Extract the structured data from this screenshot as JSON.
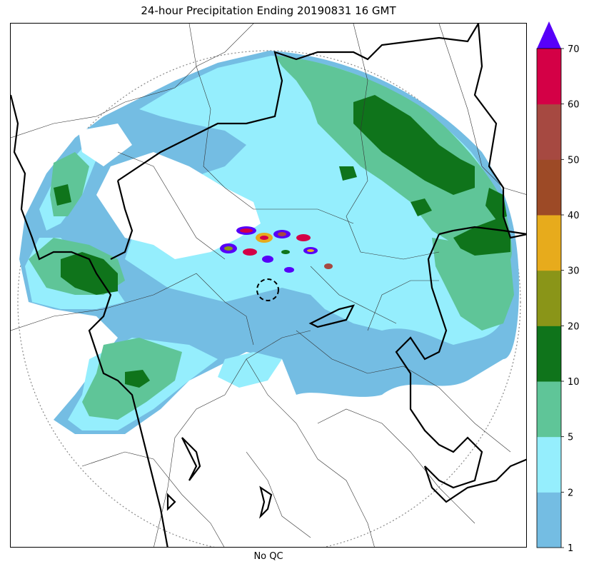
{
  "title": "24-hour Precipitation Ending 20190831 16 GMT",
  "xlabel": "No QC",
  "colorbar": {
    "ticks": [
      "1",
      "2",
      "5",
      "10",
      "20",
      "30",
      "40",
      "50",
      "60",
      "70"
    ],
    "colors": [
      "#74bde3",
      "#95eefd",
      "#5fc598",
      "#0f741b",
      "#8a9518",
      "#e7ab1c",
      "#9d4a26",
      "#a64941",
      "#d40046"
    ],
    "extend_color": "#5700f8"
  },
  "legend": {
    "level_colors": {
      "1-2": "#74bde3",
      "2-5": "#95eefd",
      "5-10": "#5fc598",
      "10-20": "#0f741b",
      "20-30": "#8a9518",
      "30-40": "#e7ab1c",
      "40-50": "#9d4a26",
      "50-60": "#a64941",
      "60-70": "#d40046",
      ">70": "#5700f8"
    }
  }
}
